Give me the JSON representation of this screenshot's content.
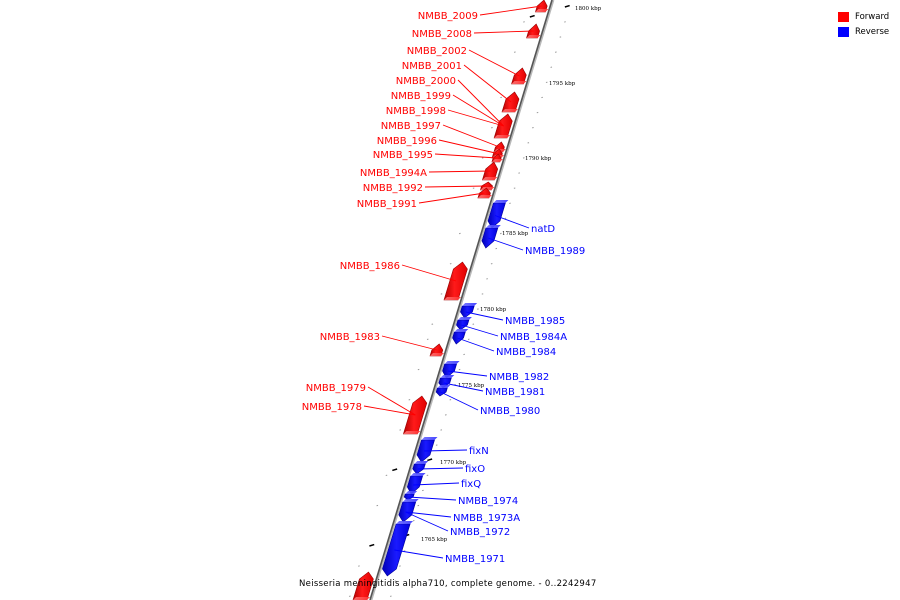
{
  "legend": {
    "forward_label": "Forward",
    "reverse_label": "Reverse",
    "forward_color": "#ff0000",
    "reverse_color": "#0000ff"
  },
  "caption": "Neisseria meningitidis alpha710, complete genome. - 0..2242947",
  "chart_data": {
    "type": "genome-map",
    "kbp_ticks": [
      "1800 kbp",
      "1795 kbp",
      "1790 kbp",
      "1785 kbp",
      "1780 kbp",
      "1775 kbp",
      "1770 kbp",
      "1765 kbp"
    ],
    "forward_genes": [
      "NMBB_2009",
      "NMBB_2008",
      "NMBB_2002",
      "NMBB_2001",
      "NMBB_2000",
      "NMBB_1999",
      "NMBB_1998",
      "NMBB_1997",
      "NMBB_1996",
      "NMBB_1995",
      "NMBB_1994A",
      "NMBB_1992",
      "NMBB_1991",
      "NMBB_1986",
      "NMBB_1983",
      "NMBB_1979",
      "NMBB_1978"
    ],
    "reverse_genes": [
      "natD",
      "NMBB_1989",
      "NMBB_1985",
      "NMBB_1984A",
      "NMBB_1984",
      "NMBB_1982",
      "NMBB_1981",
      "NMBB_1980",
      "fixN",
      "fixO",
      "fixQ",
      "NMBB_1974",
      "NMBB_1973A",
      "NMBB_1972",
      "NMBB_1971"
    ]
  }
}
